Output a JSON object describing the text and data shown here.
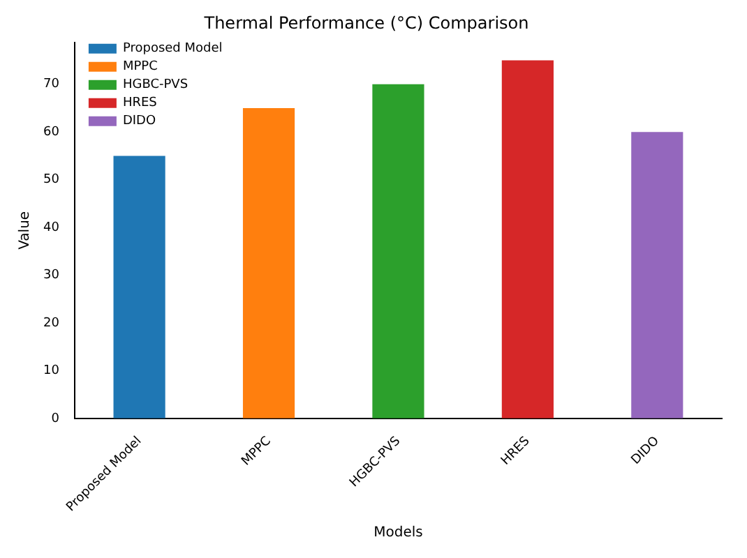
{
  "chart_data": {
    "type": "bar",
    "title": "Thermal Performance (°C) Comparison",
    "xlabel": "Models",
    "ylabel": "Value",
    "categories": [
      "Proposed Model",
      "MPPC",
      "HGBC-PVS",
      "HRES",
      "DIDO"
    ],
    "series": [
      {
        "name": "Proposed Model",
        "color": "#1f77b4",
        "values": [
          55,
          null,
          null,
          null,
          null
        ]
      },
      {
        "name": "MPPC",
        "color": "#ff7f0e",
        "values": [
          null,
          65,
          null,
          null,
          null
        ]
      },
      {
        "name": "HGBC-PVS",
        "color": "#2ca02c",
        "values": [
          null,
          null,
          70,
          null,
          null
        ]
      },
      {
        "name": "HRES",
        "color": "#d62728",
        "values": [
          null,
          null,
          null,
          75,
          null
        ]
      },
      {
        "name": "DIDO",
        "color": "#9467bd",
        "values": [
          null,
          null,
          null,
          null,
          60
        ]
      }
    ],
    "ylim": [
      0,
      78.75
    ],
    "yticks": [
      0,
      10,
      20,
      30,
      40,
      50,
      60,
      70
    ],
    "grid": false,
    "legend": "top left"
  }
}
